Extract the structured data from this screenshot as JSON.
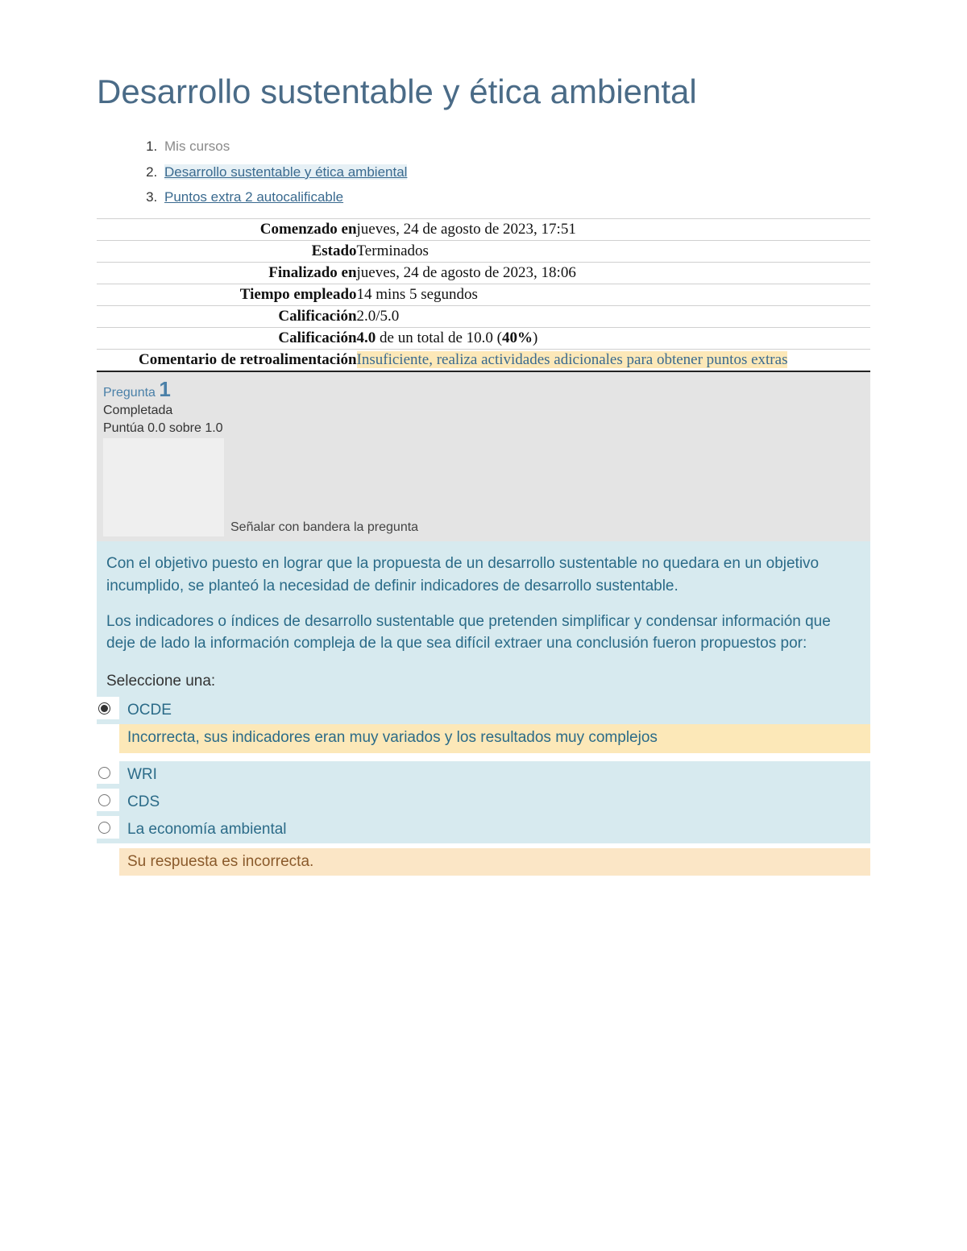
{
  "title": "Desarrollo sustentable y ética ambiental",
  "breadcrumbs": {
    "item1": "Mis cursos",
    "item2": "Desarrollo sustentable y ética ambiental",
    "item3": "Puntos extra 2 autocalificable"
  },
  "summary": {
    "rows": [
      {
        "label": "Comenzado en",
        "value": "jueves, 24 de agosto de 2023, 17:51"
      },
      {
        "label": "Estado",
        "value": "Terminados"
      },
      {
        "label": "Finalizado en",
        "value": "jueves, 24 de agosto de 2023, 18:06"
      },
      {
        "label": "Tiempo empleado",
        "value": "14 mins 5 segundos"
      },
      {
        "label": "Calificación",
        "value": "2.0/5.0"
      }
    ],
    "grade2_label": "Calificación",
    "grade2_bold1": "4.0",
    "grade2_mid": " de un total de 10.0 (",
    "grade2_bold2": "40%",
    "grade2_end": ")",
    "feedback_label": "Comentario de retroalimentación",
    "feedback_value": "Insuficiente, realiza actividades adicionales para obtener puntos extras"
  },
  "question": {
    "word": "Pregunta ",
    "number": "1",
    "status": "Completada",
    "score": "Puntúa 0.0 sobre 1.0",
    "flag_text": "Señalar con bandera la pregunta",
    "para1": "Con el objetivo puesto en lograr que la propuesta de un desarrollo sustentable no quedara en un objetivo incumplido, se planteó la necesidad de definir indicadores de desarrollo sustentable.",
    "para2": "Los indicadores o índices de desarrollo sustentable que pretenden simplificar y condensar información que deje de lado la información compleja de la que sea difícil extraer una conclusión fueron propuestos por:",
    "select_prompt": "Seleccione una:",
    "options": {
      "a": "OCDE",
      "a_feedback": "Incorrecta, sus indicadores eran muy variados y los resultados muy complejos",
      "b": "WRI",
      "c": "CDS",
      "d": "La economía ambiental"
    },
    "result": "Su respuesta es incorrecta."
  },
  "colors": {
    "title": "#4a6b87",
    "link": "#3a6a8f",
    "question_bg": "#d7eaef",
    "question_text": "#2b6b88",
    "feedback_bg": "#fce8b8",
    "result_bg": "#fbe6c6",
    "result_text": "#8a5a2b",
    "header_bg": "#e4e4e4"
  }
}
